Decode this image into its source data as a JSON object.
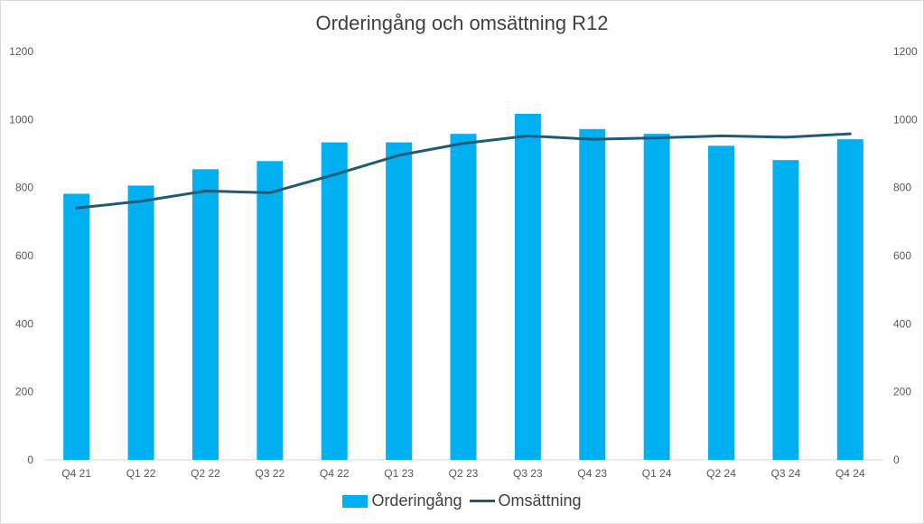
{
  "colors": {
    "bar": "#00b0f0",
    "line": "#1f5a7a",
    "axis_text": "#595959",
    "gridline": "#d9d9d9"
  },
  "chart_data": {
    "type": "bar",
    "title": "Orderingång och omsättning R12",
    "categories": [
      "Q4 21",
      "Q1 22",
      "Q2 22",
      "Q3 22",
      "Q4 22",
      "Q1 23",
      "Q2 23",
      "Q3 23",
      "Q4 23",
      "Q1 24",
      "Q2 24",
      "Q3 24",
      "Q4 24"
    ],
    "series": [
      {
        "name": "Orderingång",
        "type": "bar",
        "axis": "left",
        "values": [
          782,
          806,
          854,
          878,
          933,
          933,
          958,
          1017,
          972,
          958,
          923,
          881,
          942
        ]
      },
      {
        "name": "Omsättning",
        "type": "line",
        "axis": "left",
        "values": [
          740,
          760,
          790,
          785,
          838,
          895,
          930,
          952,
          942,
          946,
          952,
          948,
          958
        ]
      }
    ],
    "ylim": [
      0,
      1200
    ],
    "yticks": [
      0,
      200,
      400,
      600,
      800,
      1000,
      1200
    ],
    "y2lim": [
      0,
      1200
    ],
    "y2ticks": [
      0,
      200,
      400,
      600,
      800,
      1000,
      1200
    ],
    "grid": false,
    "legend_position": "bottom"
  }
}
